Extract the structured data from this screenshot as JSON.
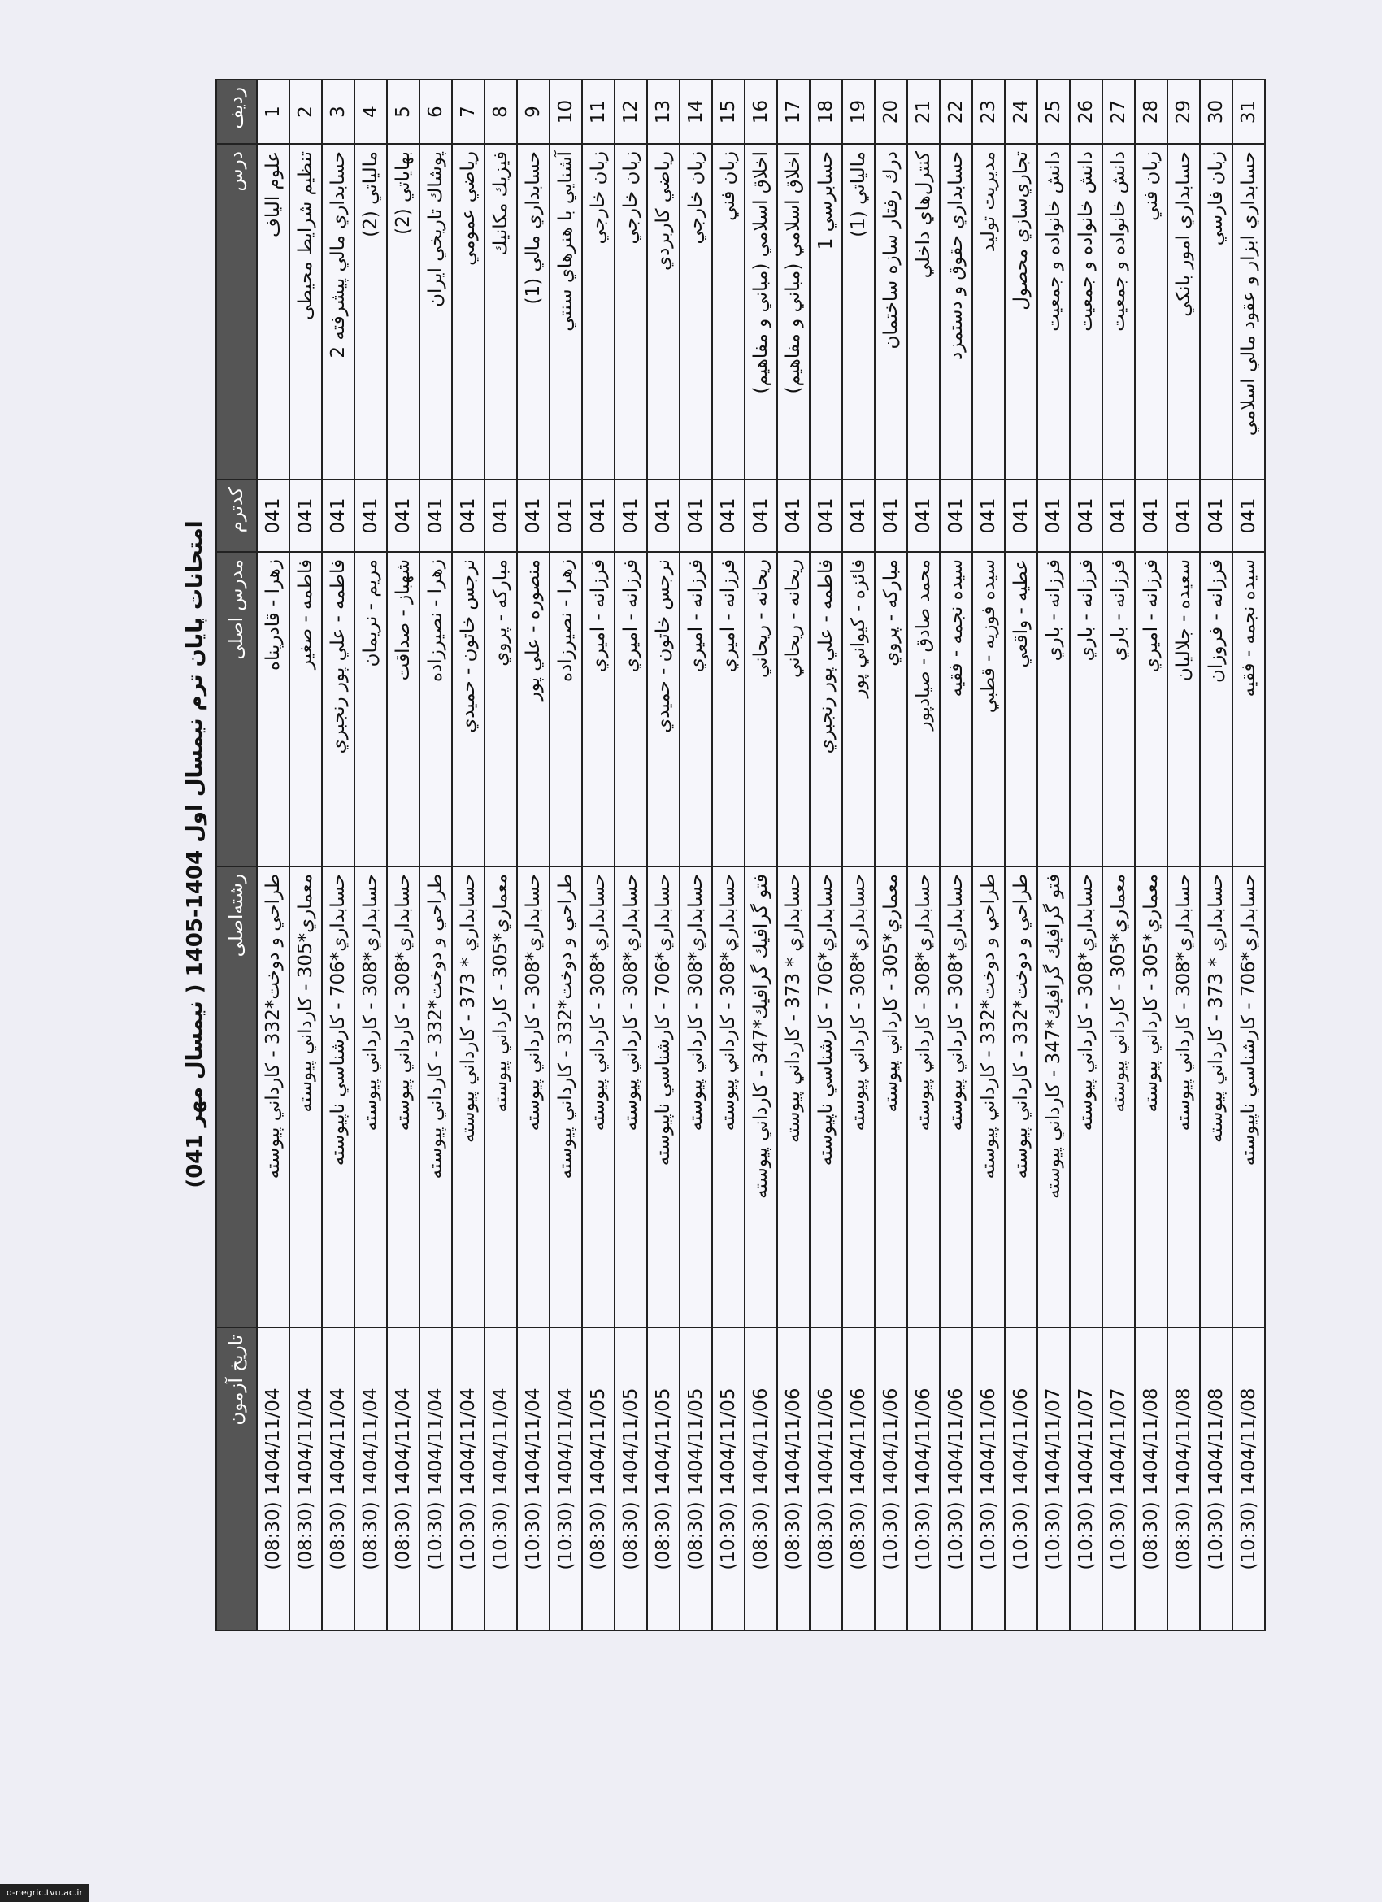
{
  "title": "امتحانات پایان ترم نیمسال اول 1404-1405 ( نیمسال مهر 041)",
  "table": {
    "header": [
      "ردیف",
      "درس",
      "کدترم",
      "مدرس اصلی",
      "رشته‌اصلی",
      "تاریخ آزمون"
    ],
    "rows": [
      [
        "1",
        "علوم الیاف",
        "041",
        "زهرا - قادرپناه",
        "طراحي و دوخت*332 - كارداني پيوسته",
        "1404/11/04 (08:30)"
      ],
      [
        "2",
        "تنظیم شرایط محیطی",
        "041",
        "فاطمه - صغیر",
        "معماري*305 - كارداني پيوسته",
        "1404/11/04 (08:30)"
      ],
      [
        "3",
        "حسابداري مالي پيشرفته 2",
        "041",
        "فاطمه - علي پور رنجبري",
        "حسابداري*706 - كارشناسي ناپيوسته",
        "1404/11/04 (08:30)"
      ],
      [
        "4",
        "مالياتي (2)",
        "041",
        "مریم - نریمان",
        "حسابداري*308 - كارداني پيوسته",
        "1404/11/04 (08:30)"
      ],
      [
        "5",
        "بهاياتي (2)",
        "041",
        "شهباز - صداقت",
        "حسابداري*308 - كارداني پيوسته",
        "1404/11/04 (08:30)"
      ],
      [
        "6",
        "پوشاك تاريخي ايران",
        "041",
        "زهرا - نصيرزاده",
        "طراحي و دوخت*332 - كارداني پيوسته",
        "1404/11/04 (10:30)"
      ],
      [
        "7",
        "رياضي عمومي",
        "041",
        "نرجس خاتون - حميدي",
        "حسابداري * 373 - كارداني پيوسته",
        "1404/11/04 (10:30)"
      ],
      [
        "8",
        "فيزيك مكانيك",
        "041",
        "مباركه - پروي",
        "معماري*305 - كارداني پيوسته",
        "1404/11/04 (10:30)"
      ],
      [
        "9",
        "حسابداري مالي (1)",
        "041",
        "منصوره - علي پور",
        "حسابداري*308 - كارداني پيوسته",
        "1404/11/04 (10:30)"
      ],
      [
        "10",
        "آشنايي با هنرهاي سنتي",
        "041",
        "زهرا - نصيرزاده",
        "طراحي و دوخت*332 - كارداني پيوسته",
        "1404/11/04 (10:30)"
      ],
      [
        "11",
        "زبان خارجي",
        "041",
        "فرزانه - اميري",
        "حسابداري*308 - كارداني پيوسته",
        "1404/11/05 (08:30)"
      ],
      [
        "12",
        "زبان خارجي",
        "041",
        "فرزانه - اميري",
        "حسابداري*308 - كارداني پيوسته",
        "1404/11/05 (08:30)"
      ],
      [
        "13",
        "رياضي كاربردي",
        "041",
        "نرجس خاتون - حميدي",
        "حسابداري*706 - كارشناسي ناپيوسته",
        "1404/11/05 (08:30)"
      ],
      [
        "14",
        "زبان خارجي",
        "041",
        "فرزانه - اميري",
        "حسابداري*308 - كارداني پيوسته",
        "1404/11/05 (08:30)"
      ],
      [
        "15",
        "زبان فني",
        "041",
        "فرزانه - اميري",
        "حسابداري*308 - كارداني پيوسته",
        "1404/11/05 (10:30)"
      ],
      [
        "16",
        "اخلاق اسلامي (مباني و مفاهيم)",
        "041",
        "ريحانه - ريحاني",
        "فتو گرافيك گرافيك*347 - كارداني پيوسته",
        "1404/11/06 (08:30)"
      ],
      [
        "17",
        "اخلاق اسلامي (مباني و مفاهيم)",
        "041",
        "ريحانه - ريحاني",
        "حسابداري * 373 - كارداني پيوسته",
        "1404/11/06 (08:30)"
      ],
      [
        "18",
        "حسابرسي 1",
        "041",
        "فاطمه - علي پور رنجبري",
        "حسابداري*706 - كارشناسي ناپيوسته",
        "1404/11/06 (08:30)"
      ],
      [
        "19",
        "مالياتي (1)",
        "041",
        "فائزه - كيواني پور",
        "حسابداري*308 - كارداني پيوسته",
        "1404/11/06 (08:30)"
      ],
      [
        "20",
        "درك رفتار سازه ساختمان",
        "041",
        "مباركه - پروي",
        "معماري*305 - كارداني پيوسته",
        "1404/11/06 (10:30)"
      ],
      [
        "21",
        "كنترل‌هاي داخلي",
        "041",
        "محمد صادق - صيادپور",
        "حسابداري*308 - كارداني پيوسته",
        "1404/11/06 (10:30)"
      ],
      [
        "22",
        "حسابداري حقوق و دستمزد",
        "041",
        "سيده نجمه - فقيه",
        "حسابداري*308 - كارداني پيوسته",
        "1404/11/06 (10:30)"
      ],
      [
        "23",
        "مديريت توليد",
        "041",
        "سيده فوزيه - قطبي",
        "طراحي و دوخت*332 - كارداني پيوسته",
        "1404/11/06 (10:30)"
      ],
      [
        "24",
        "تجاري‌سازي محصول",
        "041",
        "عطيه - واقعي",
        "طراحي و دوخت*332 - كارداني پيوسته",
        "1404/11/06 (10:30)"
      ],
      [
        "25",
        "دانش خانواده و جمعيت",
        "041",
        "فرزانه - باري",
        "فتو گرافيك گرافيك*347 - كارداني پيوسته",
        "1404/11/07 (10:30)"
      ],
      [
        "26",
        "دانش خانواده و جمعيت",
        "041",
        "فرزانه - باري",
        "حسابداري*308 - كارداني پيوسته",
        "1404/11/07 (10:30)"
      ],
      [
        "27",
        "دانش خانواده و جمعيت",
        "041",
        "فرزانه - باري",
        "معماري*305 - كارداني پيوسته",
        "1404/11/07 (10:30)"
      ],
      [
        "28",
        "زبان فني",
        "041",
        "فرزانه - اميري",
        "معماري*305 - كارداني پيوسته",
        "1404/11/08 (08:30)"
      ],
      [
        "29",
        "حسابداري امور بانكي",
        "041",
        "سعيده - جلاليان",
        "حسابداري*308 - كارداني پيوسته",
        "1404/11/08 (08:30)"
      ],
      [
        "30",
        "زبان فارسي",
        "041",
        "فرزانه - فروزان",
        "حسابداري * 373 - كارداني پيوسته",
        "1404/11/08 (10:30)"
      ],
      [
        "31",
        "حسابداري ابزار و عقود مالي اسلامي",
        "041",
        "سيده نجمه - فقيه",
        "حسابداري*706 - كارشناسي ناپيوسته",
        "1404/11/08 (10:30)"
      ]
    ]
  },
  "footer": "d-negric.tvu.ac.ir"
}
